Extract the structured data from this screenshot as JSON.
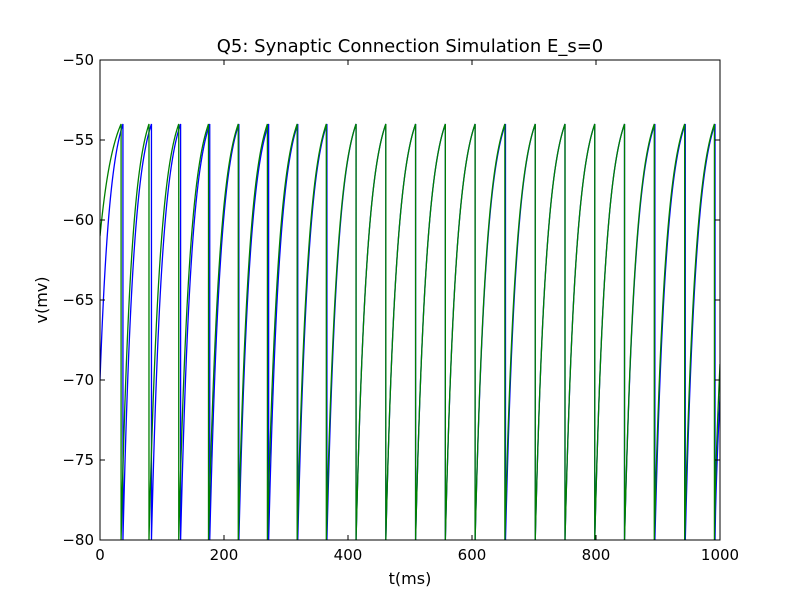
{
  "chart_data": {
    "type": "line",
    "title": "Q5: Synaptic Connection Simulation E_s=0",
    "xlabel": "t(ms)",
    "ylabel": "v(mv)",
    "xlim": [
      0,
      1000
    ],
    "ylim": [
      -80,
      -50
    ],
    "xticks": [
      0,
      200,
      400,
      600,
      800,
      1000
    ],
    "xtick_labels": [
      "0",
      "200",
      "400",
      "600",
      "800",
      "1000"
    ],
    "yticks": [
      -80,
      -75,
      -70,
      -65,
      -60,
      -55,
      -50
    ],
    "ytick_labels": [
      "−80",
      "−75",
      "−70",
      "−65",
      "−60",
      "−55",
      "−50"
    ],
    "grid": false,
    "legend": "none",
    "v_reset": -80,
    "v_threshold": -54,
    "series": [
      {
        "color": "#0000ff",
        "start_v": -70,
        "spike_times": [
          37,
          83,
          130,
          177,
          224,
          272,
          319,
          366,
          413,
          461,
          509,
          557,
          605,
          654,
          702,
          750,
          798,
          846,
          895,
          944,
          992
        ]
      },
      {
        "color": "#008000",
        "start_v": -61,
        "spike_times": [
          34,
          79,
          127,
          175,
          223,
          270,
          318,
          365,
          413,
          461,
          509,
          557,
          605,
          653,
          702,
          750,
          798,
          846,
          894,
          943,
          991
        ]
      }
    ],
    "end_values": [
      -71,
      -69
    ]
  }
}
